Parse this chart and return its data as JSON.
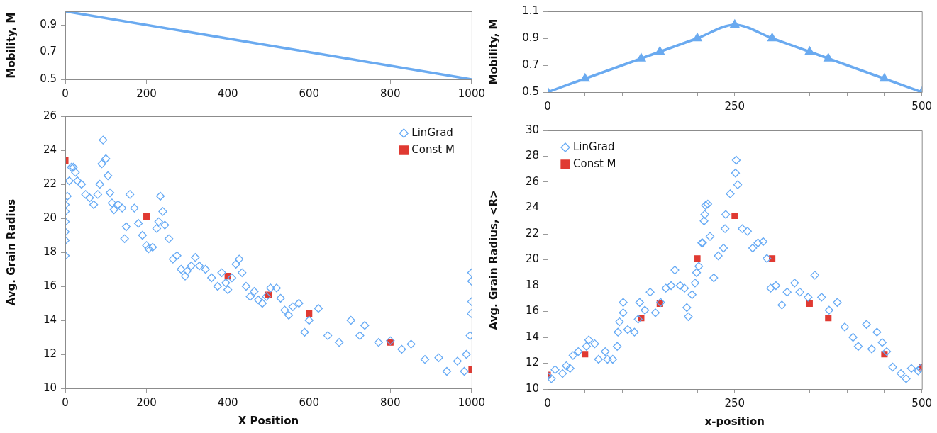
{
  "chart_data": [
    {
      "type": "line",
      "ylabel": "Mobility, M",
      "xlim": [
        0,
        1000
      ],
      "xticks": [
        0,
        200,
        400,
        600,
        800,
        1000
      ],
      "ylim": [
        0.5,
        1.0
      ],
      "yticks": [
        0.5,
        0.7,
        0.9
      ],
      "grid": false,
      "legend": false,
      "marker": "none",
      "series": [
        {
          "color": "#6aaaf0",
          "x": [
            0,
            1000
          ],
          "values": [
            1.0,
            0.5
          ]
        }
      ]
    },
    {
      "type": "line",
      "ylabel": "Mobility, M",
      "xlim": [
        0,
        500
      ],
      "xticks": [
        0,
        {
          "value": 50,
          "label": null
        },
        {
          "value": 100,
          "label": null
        },
        {
          "value": 150,
          "label": null
        },
        {
          "value": 200,
          "label": null
        },
        250,
        {
          "value": 300,
          "label": null
        },
        {
          "value": 350,
          "label": null
        },
        {
          "value": 400,
          "label": null
        },
        {
          "value": 450,
          "label": null
        },
        500
      ],
      "ylim": [
        0.5,
        1.1
      ],
      "yticks": [
        0.5,
        0.7,
        0.9,
        1.1
      ],
      "grid": false,
      "legend": false,
      "marker": "triangle",
      "series": [
        {
          "color": "#6aaaf0",
          "x": [
            0,
            50,
            125,
            150,
            200,
            250,
            300,
            350,
            375,
            450,
            500
          ],
          "values": [
            0.5,
            0.6,
            0.75,
            0.8,
            0.9,
            1.0,
            0.9,
            0.8,
            0.75,
            0.6,
            0.5
          ]
        }
      ]
    },
    {
      "type": "scatter",
      "xlabel": "X Position",
      "ylabel": "Avg. Grain Radius",
      "xlim": [
        0,
        1000
      ],
      "xticks": [
        0,
        200,
        400,
        600,
        800,
        1000
      ],
      "ylim": [
        10,
        26
      ],
      "yticks": [
        10,
        12,
        14,
        16,
        18,
        20,
        22,
        24,
        26
      ],
      "grid": false,
      "legend": "top right",
      "series": [
        {
          "name": "LinGrad",
          "color": "#66aaf5",
          "marker": "diamond",
          "x": [
            0,
            0,
            0,
            0,
            0,
            0,
            5,
            10,
            15,
            20,
            25,
            30,
            40,
            50,
            60,
            70,
            80,
            85,
            90,
            93,
            100,
            105,
            110,
            115,
            120,
            130,
            140,
            146,
            150,
            159,
            170,
            180,
            190,
            200,
            205,
            215,
            225,
            230,
            234,
            240,
            245,
            255,
            265,
            275,
            285,
            295,
            300,
            310,
            320,
            330,
            345,
            360,
            375,
            385,
            395,
            400,
            410,
            420,
            428,
            435,
            445,
            455,
            465,
            475,
            485,
            495,
            505,
            520,
            530,
            540,
            550,
            560,
            575,
            589,
            600,
            623,
            646,
            674,
            703,
            725,
            737,
            771,
            800,
            828,
            851,
            885,
            919,
            939,
            965,
            982,
            987,
            996,
            999,
            1000,
            1000,
            1000
          ],
          "values": [
            17.8,
            18.7,
            19.2,
            19.8,
            20.4,
            20.8,
            21.3,
            22.2,
            23.0,
            23.0,
            22.7,
            22.2,
            22.0,
            21.4,
            21.2,
            20.8,
            21.4,
            22.0,
            23.2,
            24.6,
            23.5,
            22.5,
            21.5,
            20.9,
            20.5,
            20.8,
            20.6,
            18.8,
            19.5,
            21.4,
            20.6,
            19.7,
            19.0,
            18.4,
            18.2,
            18.3,
            19.4,
            19.8,
            21.3,
            20.4,
            19.6,
            18.8,
            17.6,
            17.8,
            17.0,
            16.6,
            16.9,
            17.2,
            17.7,
            17.2,
            17.0,
            16.5,
            16.0,
            16.8,
            16.2,
            15.8,
            16.5,
            17.3,
            17.6,
            16.8,
            16.0,
            15.4,
            15.7,
            15.2,
            15.0,
            15.4,
            15.9,
            15.9,
            15.3,
            14.6,
            14.3,
            14.8,
            15.0,
            13.3,
            14.0,
            14.7,
            13.1,
            12.7,
            14.0,
            13.1,
            13.7,
            12.7,
            12.8,
            12.3,
            12.6,
            11.7,
            11.8,
            11.0,
            11.6,
            11.0,
            12.0,
            13.1,
            14.4,
            15.1,
            16.3,
            16.8
          ]
        },
        {
          "name": "Const M",
          "color": "#e03a32",
          "marker": "square",
          "x": [
            0,
            200,
            400,
            500,
            600,
            800,
            1000
          ],
          "values": [
            23.4,
            20.1,
            16.6,
            15.5,
            14.4,
            12.7,
            11.1
          ]
        }
      ]
    },
    {
      "type": "scatter",
      "xlabel": "x-position",
      "ylabel": "Avg. Grain Radius, <R>",
      "xlim": [
        0,
        500
      ],
      "xticks": [
        0,
        {
          "value": 50,
          "label": null
        },
        {
          "value": 100,
          "label": null
        },
        {
          "value": 150,
          "label": null
        },
        {
          "value": 200,
          "label": null
        },
        250,
        {
          "value": 300,
          "label": null
        },
        {
          "value": 350,
          "label": null
        },
        {
          "value": 400,
          "label": null
        },
        {
          "value": 450,
          "label": null
        },
        500
      ],
      "ylim": [
        10,
        30
      ],
      "yticks": [
        10,
        12,
        14,
        16,
        18,
        20,
        22,
        24,
        26,
        28,
        30
      ],
      "grid": false,
      "legend": "top left",
      "series": [
        {
          "name": "LinGrad",
          "color": "#66aaf5",
          "marker": "diamond",
          "x": [
            0,
            5,
            10,
            20,
            25,
            30,
            34,
            41,
            52,
            55,
            63,
            68,
            77,
            80,
            87,
            93,
            94,
            96,
            101,
            101,
            107,
            116,
            121,
            123,
            130,
            137,
            144,
            151,
            158,
            165,
            170,
            177,
            183,
            186,
            188,
            193,
            197,
            199,
            202,
            206,
            207,
            209,
            210,
            211,
            214,
            217,
            222,
            228,
            235,
            237,
            238,
            244,
            251,
            252,
            254,
            260,
            267,
            274,
            281,
            288,
            293,
            298,
            305,
            313,
            320,
            330,
            337,
            348,
            357,
            366,
            376,
            387,
            397,
            408,
            415,
            426,
            433,
            440,
            447,
            453,
            461,
            472,
            479,
            486,
            495,
            498
          ],
          "values": [
            11.0,
            10.8,
            11.5,
            11.2,
            11.8,
            11.6,
            12.6,
            12.9,
            13.3,
            13.8,
            13.5,
            12.3,
            12.9,
            12.3,
            12.3,
            13.3,
            14.4,
            15.2,
            16.7,
            15.9,
            14.6,
            14.4,
            15.4,
            16.7,
            16.1,
            17.5,
            15.9,
            16.7,
            17.8,
            18.0,
            19.2,
            18.0,
            17.8,
            16.3,
            15.6,
            17.3,
            18.2,
            19.0,
            19.5,
            21.3,
            21.3,
            23.0,
            23.5,
            24.2,
            24.3,
            21.8,
            18.6,
            20.3,
            20.9,
            22.4,
            23.5,
            25.1,
            26.7,
            27.7,
            25.8,
            22.4,
            22.2,
            20.9,
            21.3,
            21.4,
            20.1,
            17.8,
            18.0,
            16.5,
            17.5,
            18.2,
            17.5,
            17.1,
            18.8,
            17.1,
            16.1,
            16.7,
            14.8,
            14.0,
            13.3,
            15.0,
            13.1,
            14.4,
            13.6,
            12.9,
            11.7,
            11.2,
            10.8,
            11.6,
            11.4,
            11.6
          ]
        },
        {
          "name": "Const M",
          "color": "#e03a32",
          "marker": "square",
          "x": [
            0,
            50,
            125,
            150,
            200,
            250,
            300,
            350,
            375,
            450,
            500
          ],
          "values": [
            11.1,
            12.7,
            15.5,
            16.6,
            20.1,
            23.4,
            20.1,
            16.6,
            15.5,
            12.7,
            11.7
          ]
        }
      ]
    }
  ]
}
